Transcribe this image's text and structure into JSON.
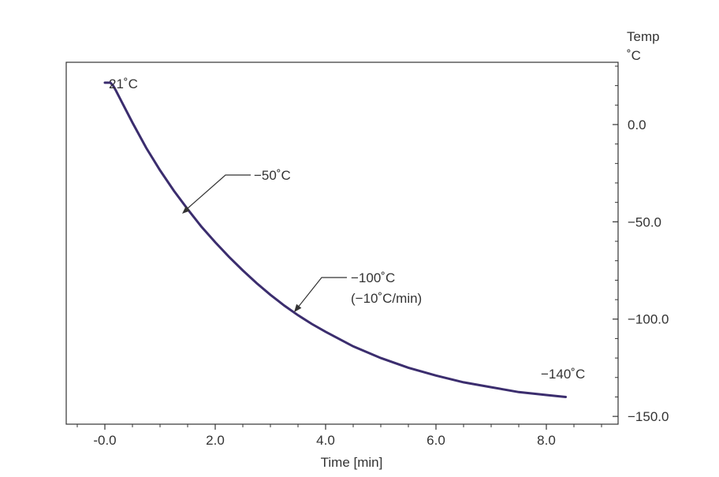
{
  "chart_data": {
    "type": "line",
    "title": "",
    "xlabel": "Time [min]",
    "ylabel_lines": [
      "Temp",
      "˚C"
    ],
    "xlim": [
      -0.7,
      9.3
    ],
    "ylim": [
      -154,
      32
    ],
    "x_ticks": [
      -0.0,
      2.0,
      4.0,
      6.0,
      8.0
    ],
    "x_tick_labels": [
      "-0.0",
      "2.0",
      "4.0",
      "6.0",
      "8.0"
    ],
    "y_ticks": [
      0,
      -50,
      -100,
      -150
    ],
    "y_tick_labels": [
      "0.0",
      "−50.0",
      "−100.0",
      "−150.0"
    ],
    "series": [
      {
        "name": "Temperature",
        "color": "#3b2d6e",
        "x": [
          0.0,
          0.1,
          0.15,
          0.2,
          0.3,
          0.5,
          0.75,
          1.0,
          1.25,
          1.5,
          1.75,
          2.0,
          2.25,
          2.5,
          2.75,
          3.0,
          3.25,
          3.5,
          3.75,
          4.0,
          4.5,
          5.0,
          5.5,
          6.0,
          6.5,
          7.0,
          7.5,
          8.0,
          8.35
        ],
        "y": [
          21.5,
          21.5,
          20.0,
          17.5,
          12.0,
          1.0,
          -12.0,
          -23.5,
          -34.0,
          -43.5,
          -52.5,
          -60.5,
          -68.0,
          -75.0,
          -81.5,
          -87.5,
          -93.0,
          -98.0,
          -102.5,
          -106.5,
          -114.0,
          -120.0,
          -125.0,
          -129.0,
          -132.5,
          -135.0,
          -137.5,
          -139.0,
          -140.0
        ]
      }
    ],
    "annotations": [
      {
        "text": "21˚C"
      },
      {
        "text": "−50˚C",
        "point_x": 1.65,
        "point_y": -48
      },
      {
        "text": "−100˚C",
        "text2": "(−10˚C/min)",
        "point_x": 3.6,
        "point_y": -99
      },
      {
        "text": "−140˚C"
      }
    ]
  }
}
